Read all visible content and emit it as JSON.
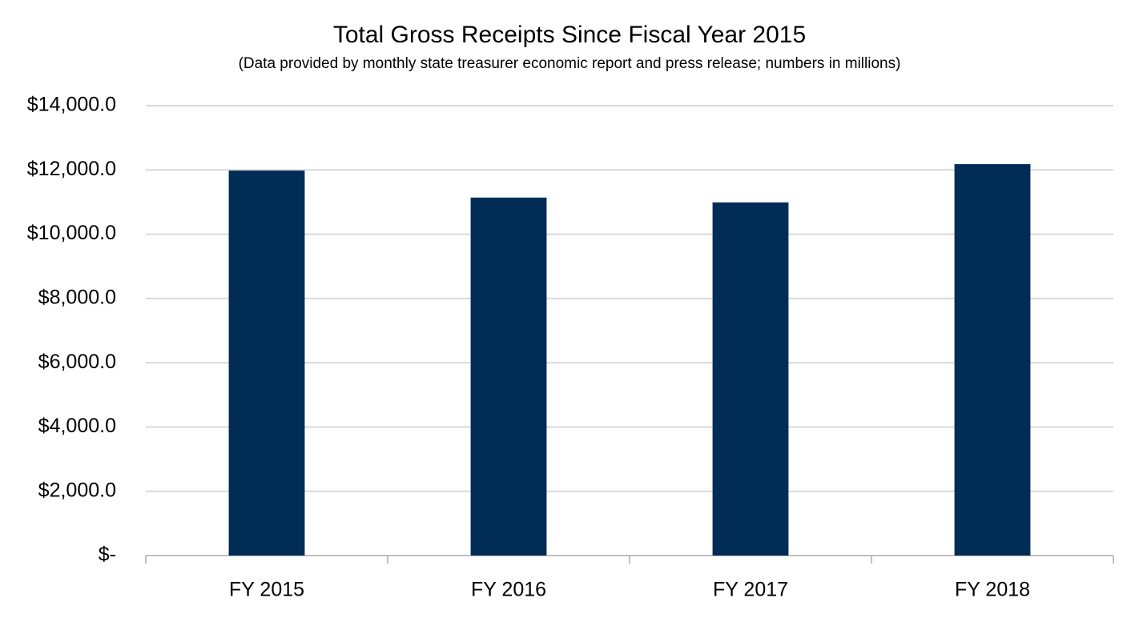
{
  "chart_data": {
    "type": "bar",
    "title": "Total Gross Receipts Since Fiscal Year 2015",
    "subtitle": "(Data provided by monthly state treasurer economic report and press release; numbers in millions)",
    "categories": [
      "FY 2015",
      "FY 2016",
      "FY 2017",
      "FY 2018"
    ],
    "values": [
      11980,
      11140,
      10990,
      12180
    ],
    "color": "#002c56",
    "ylim": [
      0,
      14000
    ],
    "yticks": [
      {
        "value": 0,
        "label": "$-"
      },
      {
        "value": 2000,
        "label": "$2,000.0"
      },
      {
        "value": 4000,
        "label": "$4,000.0"
      },
      {
        "value": 6000,
        "label": "$6,000.0"
      },
      {
        "value": 8000,
        "label": "$8,000.0"
      },
      {
        "value": 10000,
        "label": "$10,000.0"
      },
      {
        "value": 12000,
        "label": "$12,000.0"
      },
      {
        "value": 14000,
        "label": "$14,000.0"
      }
    ],
    "grid": true
  }
}
